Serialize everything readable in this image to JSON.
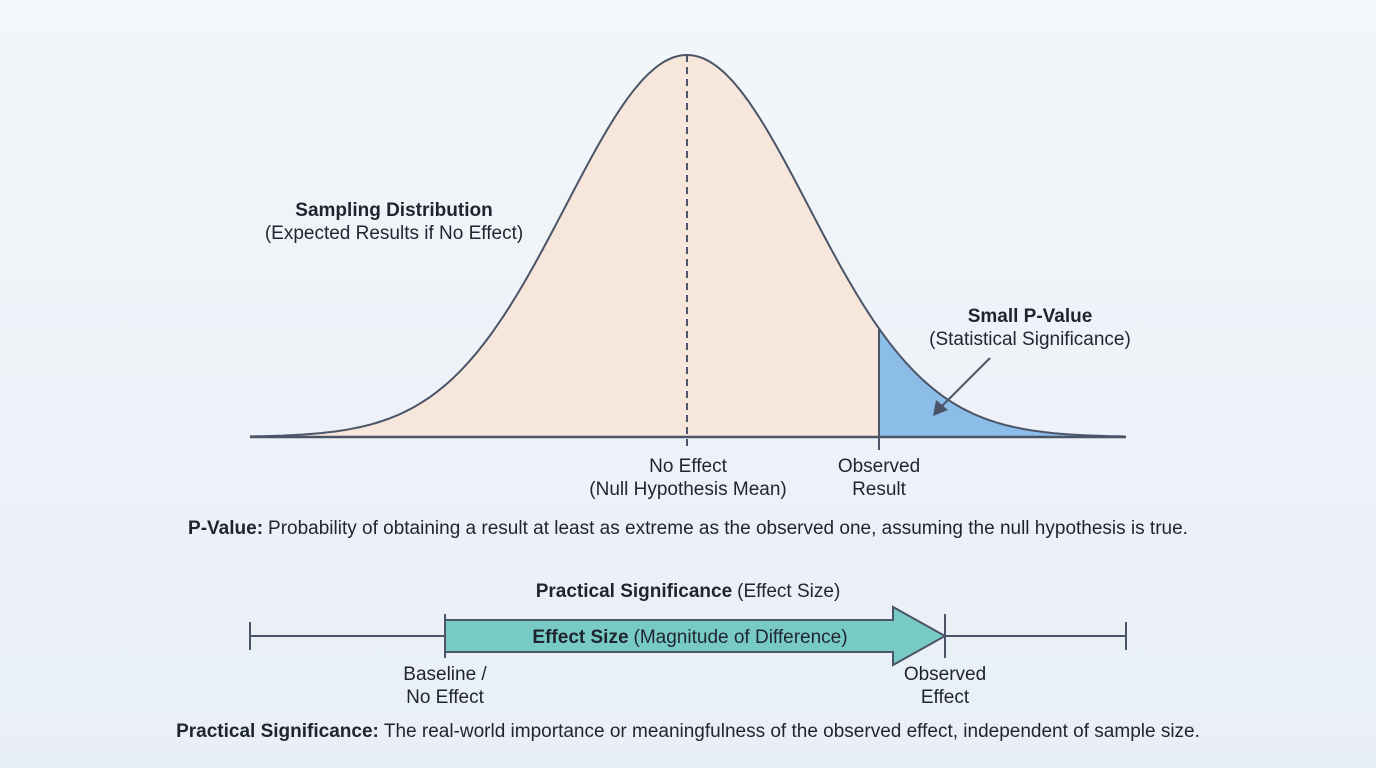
{
  "curve_label": {
    "title": "Sampling Distribution",
    "subtitle": "(Expected Results if No Effect)"
  },
  "p_value_label": {
    "title": "Small P-Value",
    "subtitle": "(Statistical Significance)"
  },
  "axis_labels": {
    "null_mean": [
      "No Effect",
      "(Null Hypothesis Mean)"
    ],
    "observed": [
      "Observed",
      "Result"
    ]
  },
  "p_value_definition": {
    "term": "P-Value:",
    "text": "Probability of obtaining a result at least as extreme as the observed one, assuming the null hypothesis is true."
  },
  "effect_section": {
    "title": "Practical Significance",
    "subtitle": "(Effect Size)",
    "arrow_label": {
      "term": "Effect Size",
      "text": "(Magnitude of Difference)"
    },
    "baseline": [
      "Baseline /",
      "No Effect"
    ],
    "observed": [
      "Observed",
      "Effect"
    ]
  },
  "practical_definition": {
    "term": "Practical Significance:",
    "text": "The real-world importance or meaningfulness of the observed effect, independent of sample size."
  }
}
